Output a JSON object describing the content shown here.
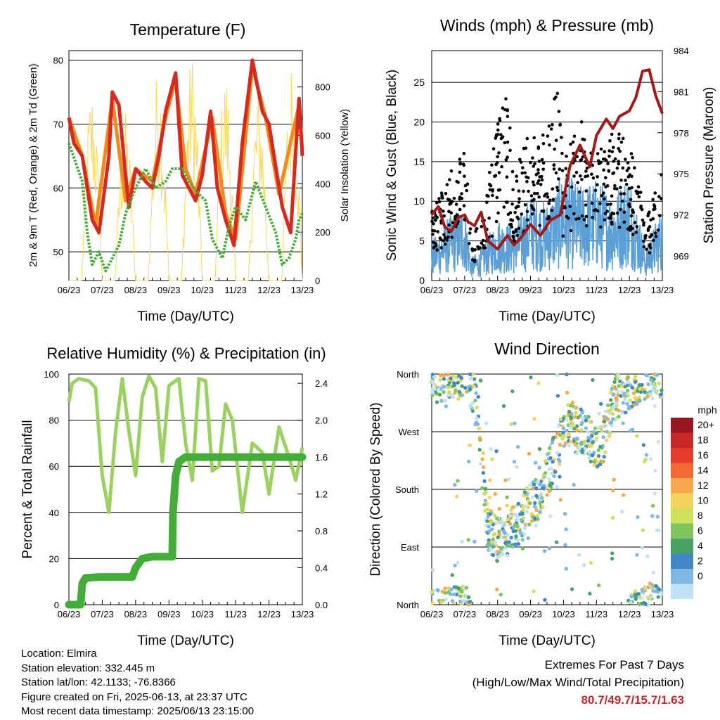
{
  "xticks": [
    "06/23",
    "07/23",
    "08/23",
    "09/23",
    "10/23",
    "11/23",
    "12/23",
    "13/23"
  ],
  "xlabel": "Time (Day/UTC)",
  "colors": {
    "temp2m": "#d42a20",
    "temp9m": "#f28a1a",
    "dewpoint": "#44ad3a",
    "solar": "#fad85a",
    "wind": "#5b9fd6",
    "gust": "#000000",
    "pressure": "#a01a1a",
    "rh": "#9bd160",
    "precip": "#44ad3a"
  },
  "chart_data": [
    {
      "type": "line",
      "title": "Temperature (F)",
      "xlabel": "Time (Day/UTC)",
      "ylabel": "2m & 9m T (Red, Orange) & 2m Td (Green)",
      "y2label": "Solar Insolation (Yellow)",
      "ylim": [
        45.5,
        81.5
      ],
      "y_ticks": [
        50,
        60,
        70,
        80
      ],
      "y2lim": [
        0,
        950
      ],
      "y2_ticks": [
        0,
        200,
        400,
        600,
        800
      ],
      "xlim": [
        0,
        7
      ],
      "series": [
        {
          "name": "2m T",
          "color": "#d42a20",
          "x": [
            0,
            0.15,
            0.4,
            0.7,
            0.9,
            1.2,
            1.3,
            1.5,
            1.7,
            1.8,
            2.0,
            2.3,
            2.5,
            2.7,
            2.9,
            3.2,
            3.4,
            3.6,
            3.8,
            4.0,
            4.25,
            4.45,
            4.7,
            4.95,
            5.2,
            5.5,
            5.8,
            6.0,
            6.15,
            6.4,
            6.65,
            6.9,
            7.0
          ],
          "y": [
            71,
            67,
            65,
            55,
            53,
            65,
            75,
            73,
            62,
            57,
            63,
            61,
            60,
            65,
            72,
            78,
            62,
            60,
            58,
            62,
            72,
            60,
            55,
            51,
            67,
            80,
            72,
            70,
            65,
            57,
            53,
            74,
            65
          ]
        },
        {
          "name": "9m T",
          "color": "#f28a1a",
          "x": [
            0,
            0.4,
            0.8,
            1.3,
            1.7,
            2.0,
            2.5,
            2.9,
            3.2,
            3.5,
            3.8,
            4.3,
            4.7,
            5.0,
            5.5,
            5.9,
            6.3,
            6.9,
            7.0
          ],
          "y": [
            71,
            65,
            54,
            74,
            58,
            63,
            61,
            71,
            77,
            63,
            59,
            71,
            56,
            52,
            79,
            71,
            59,
            73,
            66
          ]
        },
        {
          "name": "2m Td",
          "color": "#44ad3a",
          "x": [
            0,
            0.2,
            0.4,
            0.55,
            0.7,
            0.9,
            1.1,
            1.3,
            1.5,
            1.7,
            2.0,
            2.3,
            2.6,
            2.9,
            3.1,
            3.4,
            3.6,
            3.9,
            4.1,
            4.3,
            4.6,
            4.8,
            5.0,
            5.3,
            5.6,
            5.9,
            6.2,
            6.4,
            6.6,
            6.8,
            6.9,
            7.0
          ],
          "y": [
            67,
            64,
            61,
            53,
            48,
            50,
            47,
            49,
            51,
            56,
            60,
            63,
            60,
            61,
            63,
            63,
            61,
            59,
            58,
            52,
            49,
            54,
            57,
            55,
            61,
            57,
            53,
            48,
            49,
            52,
            55,
            56
          ]
        },
        {
          "name": "Solar Insolation",
          "axis": "y2",
          "color": "#fad85a",
          "peak_day_fraction": 0.72,
          "peaks": [
            820,
            700,
            900,
            950,
            880,
            800,
            920,
            820
          ]
        }
      ]
    },
    {
      "type": "scatter",
      "title": "Winds (mph) & Pressure (mb)",
      "xlabel": "Time (Day/UTC)",
      "ylabel": "Sonic Wind & Gust (Blue, Black)",
      "y2label": "Station Pressure (Maroon)",
      "ylim": [
        0,
        29
      ],
      "y_ticks": [
        0,
        5,
        10,
        15,
        20,
        25
      ],
      "y2lim": [
        967.2,
        984
      ],
      "y2_ticks": [
        969,
        972,
        975,
        978,
        981,
        984
      ],
      "xlim": [
        0,
        7
      ],
      "wind_envelope": {
        "x": [
          0,
          0.5,
          1.0,
          1.2,
          1.5,
          2.0,
          2.5,
          3.0,
          3.5,
          3.8,
          4.0,
          4.5,
          5.0,
          5.5,
          6.0,
          6.5,
          7.0
        ],
        "y": [
          5,
          8,
          10,
          3,
          4,
          8,
          7,
          11,
          10,
          12,
          14,
          12,
          13,
          11,
          14,
          4,
          10
        ]
      },
      "gust_envelope": {
        "x": [
          0,
          0.5,
          1.0,
          1.2,
          1.5,
          2.0,
          2.3,
          2.5,
          3.0,
          3.5,
          3.8,
          4.0,
          4.5,
          5.0,
          5.5,
          6.0,
          6.5,
          7.0
        ],
        "y": [
          9,
          13,
          18,
          6,
          7,
          20,
          24,
          13,
          20,
          18,
          26,
          15,
          21,
          16,
          19,
          18,
          8,
          14
        ]
      },
      "series": [
        {
          "name": "Station Pressure",
          "axis": "y2",
          "color": "#a01a1a",
          "x": [
            0,
            0.2,
            0.4,
            0.6,
            0.8,
            1.0,
            1.1,
            1.3,
            1.5,
            1.7,
            2.0,
            2.3,
            2.5,
            2.7,
            3.0,
            3.3,
            3.6,
            3.9,
            4.2,
            4.5,
            4.8,
            5.0,
            5.3,
            5.5,
            5.7,
            6.0,
            6.2,
            6.4,
            6.6,
            6.8,
            7.0
          ],
          "y": [
            972,
            972.6,
            971.1,
            970.8,
            971.8,
            972,
            971.5,
            971.2,
            972.2,
            970.1,
            969.5,
            970.5,
            969.8,
            970.3,
            971.3,
            970.5,
            971.6,
            972,
            975.6,
            977.1,
            975.5,
            977.8,
            979,
            978.3,
            979.2,
            979.6,
            980.6,
            982.5,
            982.6,
            980.7,
            979.4
          ]
        }
      ]
    },
    {
      "type": "line",
      "title": "Relative Humidity (%) & Precipitation (in)",
      "xlabel": "Time (Day/UTC)",
      "ylabel": "Percent & Total Rainfall",
      "ylim": [
        0,
        100
      ],
      "y_ticks": [
        0,
        20,
        40,
        60,
        80,
        100
      ],
      "y2lim": [
        0,
        2.5
      ],
      "y2_ticks": [
        "0.0",
        "0.4",
        "0.8",
        "1.2",
        "1.6",
        "2.0",
        "2.4"
      ],
      "xlim": [
        0,
        7
      ],
      "series": [
        {
          "name": "RH",
          "color": "#9bd160",
          "x": [
            0,
            0.1,
            0.3,
            0.6,
            0.8,
            1.0,
            1.2,
            1.4,
            1.6,
            1.8,
            2.0,
            2.2,
            2.4,
            2.6,
            2.8,
            3.0,
            3.1,
            3.3,
            3.5,
            3.7,
            3.9,
            4.1,
            4.3,
            4.5,
            4.7,
            4.9,
            5.2,
            5.5,
            5.8,
            6.0,
            6.3,
            6.6,
            6.8,
            7.0
          ],
          "y": [
            88,
            96,
            98,
            97,
            94,
            56,
            40,
            75,
            98,
            75,
            56,
            90,
            99,
            94,
            62,
            95,
            96,
            98,
            70,
            54,
            98,
            97,
            58,
            60,
            87,
            80,
            40,
            70,
            66,
            48,
            77,
            64,
            54,
            68
          ]
        },
        {
          "name": "Total Rainfall",
          "axis": "y2",
          "color": "#44ad3a",
          "x": [
            0,
            0.35,
            0.4,
            0.5,
            0.9,
            1.9,
            2.0,
            2.2,
            2.5,
            3.1,
            3.12,
            3.2,
            3.3,
            3.5,
            3.8,
            7.0
          ],
          "y": [
            0,
            0,
            0.23,
            0.29,
            0.3,
            0.3,
            0.4,
            0.5,
            0.52,
            0.52,
            1.0,
            1.4,
            1.55,
            1.6,
            1.6,
            1.6
          ]
        }
      ]
    },
    {
      "type": "scatter",
      "title": "Wind Direction",
      "xlabel": "Time (Day/UTC)",
      "ylabel": "Direction (Colored By Speed)",
      "y_ticks": [
        "North",
        "West",
        "South",
        "East",
        "North"
      ],
      "xlim": [
        0,
        7
      ],
      "legend": {
        "title": "mph",
        "position": "right",
        "labels": [
          "20+",
          "18",
          "16",
          "14",
          "12",
          "10",
          "8",
          "6",
          "4",
          "2",
          "0"
        ],
        "colors": [
          "#99181f",
          "#c62828",
          "#e53b2b",
          "#f26a33",
          "#f8a74c",
          "#f3d35d",
          "#cfe05c",
          "#7fc45c",
          "#4aa267",
          "#3f88c5",
          "#7fb8e3",
          "#bfe3f5"
        ]
      },
      "direction_track": {
        "x": [
          0,
          0.9,
          1.1,
          1.4,
          1.7,
          2.0,
          2.4,
          2.7,
          2.9,
          3.2,
          3.5,
          3.8,
          4.0,
          4.2,
          4.4,
          4.6,
          4.8,
          5.0,
          5.2,
          5.5,
          5.8,
          6.0,
          6.3,
          6.6,
          7.0
        ],
        "y_deg": [
          350,
          355,
          360,
          300,
          120,
          100,
          115,
          130,
          150,
          165,
          200,
          240,
          270,
          285,
          280,
          270,
          255,
          245,
          255,
          320,
          330,
          340,
          350,
          360,
          355
        ]
      }
    }
  ],
  "footer": {
    "location": "Location: Elmira",
    "elevation": "Station elevation: 332.445 m",
    "latlon": "Station lat/lon: 42.1133; -76.8366",
    "created": "Figure created on Fri, 2025-06-13, at 23:37 UTC",
    "recent": "Most recent data timestamp: 2025/06/13 23:15:00"
  },
  "extremes": {
    "title": "Extremes For Past 7 Days",
    "subtitle": "(High/Low/Max Wind/Total Precipitation)",
    "values": "80.7/49.7/15.7/1.63"
  }
}
